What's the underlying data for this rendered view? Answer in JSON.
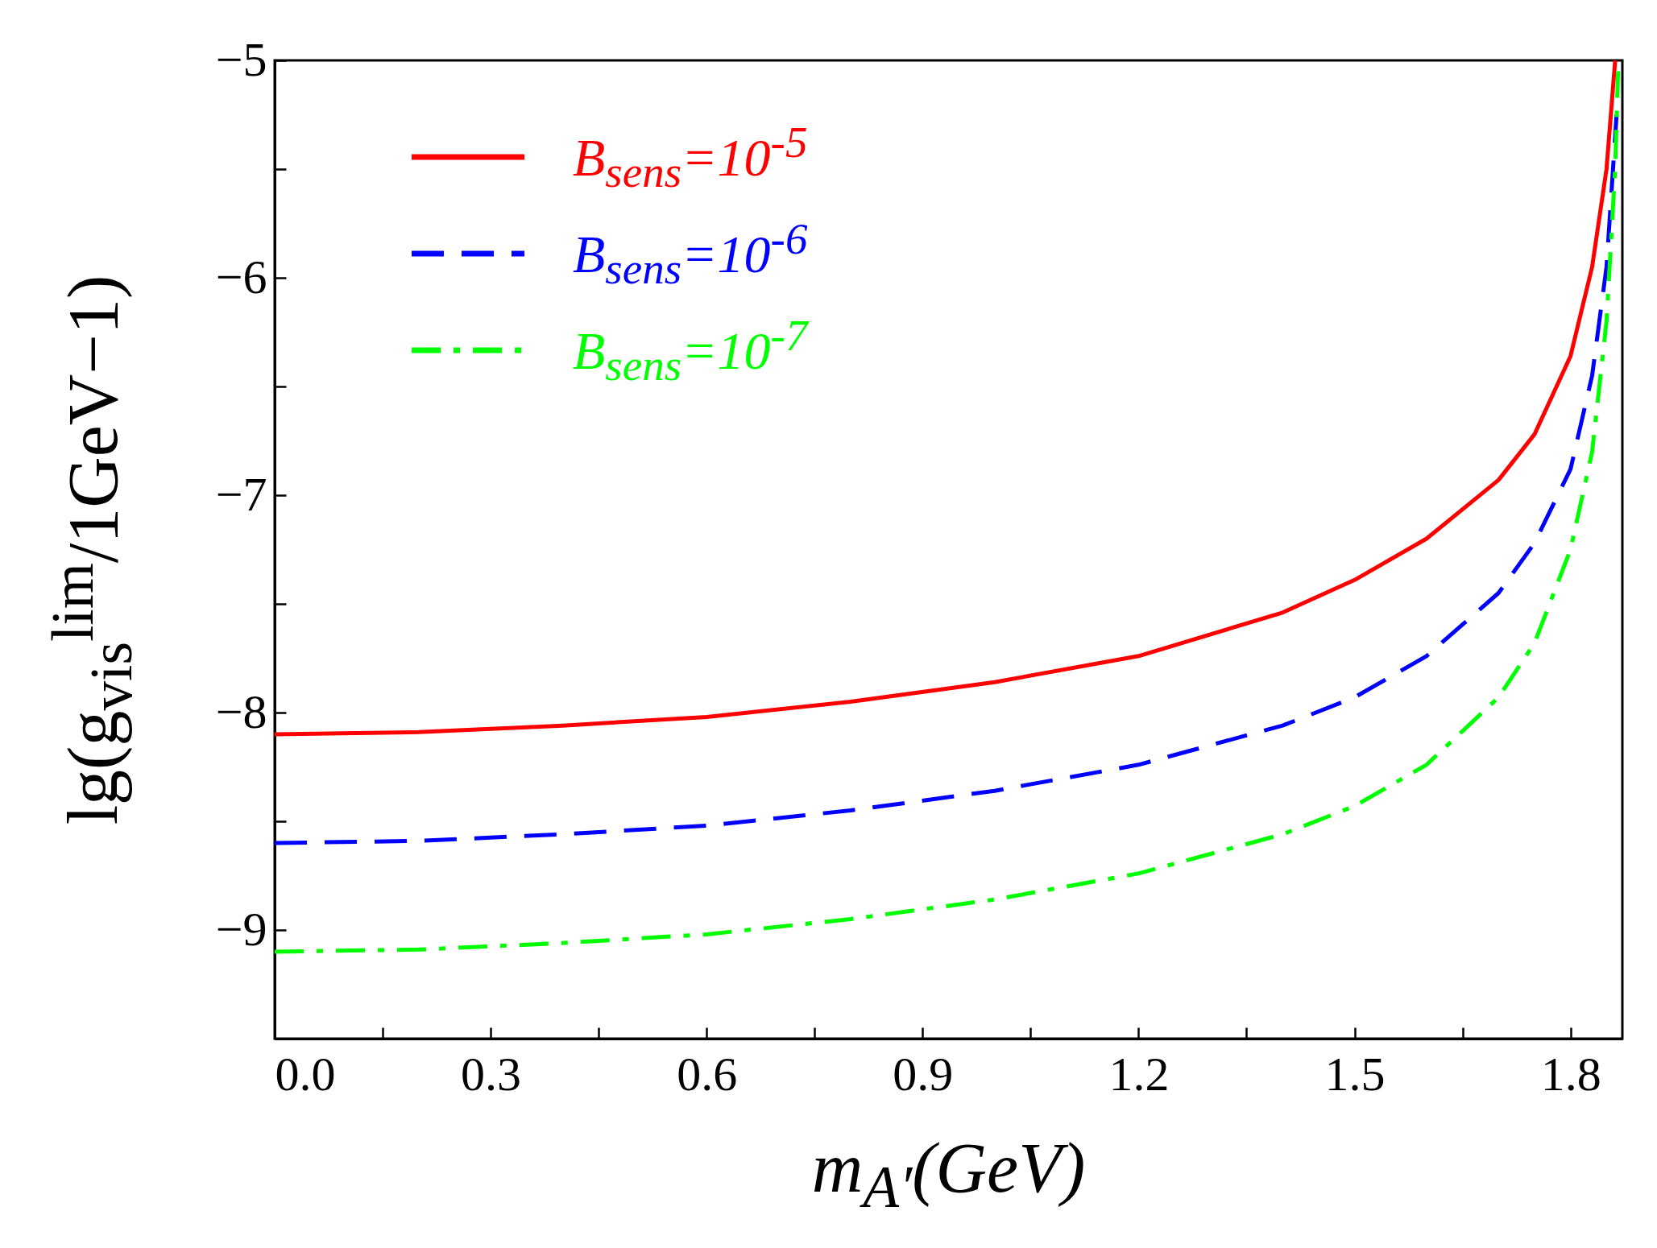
{
  "chart_data": {
    "type": "line",
    "xlabel": "m$_{A′}$(GeV)",
    "ylabel": "lg(g$_{vis}$$^{lim}$/1GeV−1)",
    "xlim": [
      0,
      1.872
    ],
    "ylim": [
      -9.5,
      -5
    ],
    "xticks": [
      {
        "value": 0,
        "label": "0.0"
      },
      {
        "value": 0.15,
        "label": null
      },
      {
        "value": 0.3,
        "label": "0.3"
      },
      {
        "value": 0.45,
        "label": null
      },
      {
        "value": 0.6,
        "label": "0.6"
      },
      {
        "value": 0.75,
        "label": null
      },
      {
        "value": 0.9,
        "label": "0.9"
      },
      {
        "value": 1.05,
        "label": null
      },
      {
        "value": 1.2,
        "label": "1.2"
      },
      {
        "value": 1.35,
        "label": null
      },
      {
        "value": 1.5,
        "label": "1.5"
      },
      {
        "value": 1.65,
        "label": null
      },
      {
        "value": 1.8,
        "label": "1.8"
      }
    ],
    "yticks": [
      -5,
      {
        "value": -5.5,
        "label": null
      },
      -6,
      {
        "value": -6.5,
        "label": null
      },
      -7,
      {
        "value": -7.5,
        "label": null
      },
      -8,
      {
        "value": -8.5,
        "label": null
      },
      -9,
      {
        "value": -9.5,
        "label": null
      }
    ],
    "legend": "top left",
    "x": [
      0,
      0.2,
      0.4,
      0.6,
      0.8,
      1.0,
      1.2,
      1.4,
      1.5,
      1.6,
      1.7,
      1.75,
      1.8,
      1.83,
      1.85,
      1.862
    ],
    "series": [
      {
        "name": "B$_{sens}$=10$^{-5}$",
        "color": "#ff0000",
        "line_style": "solid",
        "values": [
          -8.1,
          -8.09,
          -8.06,
          -8.02,
          -7.95,
          -7.86,
          -7.74,
          -7.54,
          -7.39,
          -7.2,
          -6.93,
          -6.72,
          -6.36,
          -5.95,
          -5.5,
          -5.0
        ]
      },
      {
        "name": "B$_{sens}$=10$^{-6}$",
        "color": "#0000ff",
        "line_style": "dashed",
        "x": [
          0,
          0.2,
          0.4,
          0.6,
          0.8,
          1.0,
          1.2,
          1.4,
          1.5,
          1.6,
          1.7,
          1.75,
          1.8,
          1.83,
          1.85,
          1.864
        ],
        "values": [
          -8.6,
          -8.59,
          -8.56,
          -8.52,
          -8.45,
          -8.36,
          -8.24,
          -8.06,
          -7.93,
          -7.74,
          -7.45,
          -7.22,
          -6.88,
          -6.45,
          -5.95,
          -5.25
        ]
      },
      {
        "name": "B$_{sens}$=10$^{-7}$",
        "color": "#00ff00",
        "line_style": "dashdot",
        "x": [
          0,
          0.2,
          0.4,
          0.6,
          0.8,
          1.0,
          1.2,
          1.4,
          1.5,
          1.6,
          1.7,
          1.75,
          1.8,
          1.83,
          1.85,
          1.862,
          1.866
        ],
        "values": [
          -9.1,
          -9.09,
          -9.06,
          -9.02,
          -8.95,
          -8.86,
          -8.74,
          -8.56,
          -8.43,
          -8.24,
          -7.93,
          -7.68,
          -7.25,
          -6.8,
          -6.2,
          -5.5,
          -5.05
        ]
      }
    ]
  }
}
